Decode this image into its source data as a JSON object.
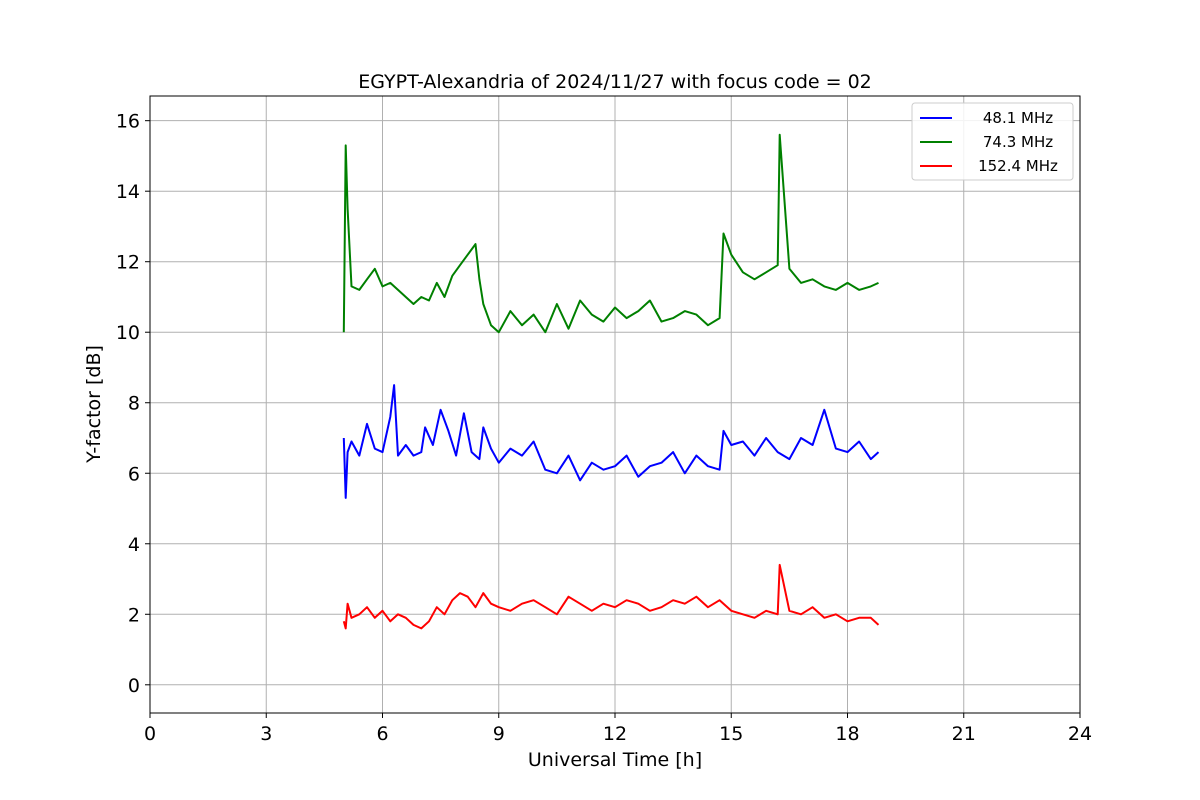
{
  "chart_data": {
    "type": "line",
    "title": "EGYPT-Alexandria of 2024/11/27 with focus code = 02",
    "xlabel": "Universal Time [h]",
    "ylabel": "Y-factor [dB]",
    "xlim": [
      0,
      24
    ],
    "ylim": [
      -0.8,
      16.7
    ],
    "xticks": [
      0,
      3,
      6,
      9,
      12,
      15,
      18,
      21,
      24
    ],
    "yticks": [
      0,
      2,
      4,
      6,
      8,
      10,
      12,
      14,
      16
    ],
    "grid": true,
    "legend_position": "top-right",
    "series": [
      {
        "name": "48.1 MHz",
        "color": "#0000ff",
        "x": [
          5.0,
          5.05,
          5.1,
          5.2,
          5.4,
          5.6,
          5.8,
          6.0,
          6.2,
          6.3,
          6.4,
          6.6,
          6.8,
          7.0,
          7.1,
          7.3,
          7.5,
          7.7,
          7.9,
          8.1,
          8.3,
          8.5,
          8.6,
          8.8,
          9.0,
          9.3,
          9.6,
          9.9,
          10.2,
          10.5,
          10.8,
          11.1,
          11.4,
          11.7,
          12.0,
          12.3,
          12.6,
          12.9,
          13.2,
          13.5,
          13.8,
          14.1,
          14.4,
          14.7,
          14.8,
          15.0,
          15.3,
          15.6,
          15.9,
          16.2,
          16.5,
          16.8,
          17.1,
          17.4,
          17.7,
          18.0,
          18.3,
          18.6,
          18.8
        ],
        "y": [
          7.0,
          5.3,
          6.6,
          6.9,
          6.5,
          7.4,
          6.7,
          6.6,
          7.6,
          8.5,
          6.5,
          6.8,
          6.5,
          6.6,
          7.3,
          6.8,
          7.8,
          7.2,
          6.5,
          7.7,
          6.6,
          6.4,
          7.3,
          6.7,
          6.3,
          6.7,
          6.5,
          6.9,
          6.1,
          6.0,
          6.5,
          5.8,
          6.3,
          6.1,
          6.2,
          6.5,
          5.9,
          6.2,
          6.3,
          6.6,
          6.0,
          6.5,
          6.2,
          6.1,
          7.2,
          6.8,
          6.9,
          6.5,
          7.0,
          6.6,
          6.4,
          7.0,
          6.8,
          7.8,
          6.7,
          6.6,
          6.9,
          6.4,
          6.6
        ]
      },
      {
        "name": "74.3 MHz",
        "color": "#008000",
        "x": [
          5.0,
          5.05,
          5.1,
          5.2,
          5.4,
          5.6,
          5.8,
          6.0,
          6.2,
          6.4,
          6.6,
          6.8,
          7.0,
          7.2,
          7.4,
          7.6,
          7.8,
          8.0,
          8.2,
          8.4,
          8.5,
          8.6,
          8.8,
          9.0,
          9.3,
          9.6,
          9.9,
          10.2,
          10.5,
          10.8,
          11.1,
          11.4,
          11.7,
          12.0,
          12.3,
          12.6,
          12.9,
          13.2,
          13.5,
          13.8,
          14.1,
          14.4,
          14.7,
          14.8,
          15.0,
          15.3,
          15.6,
          15.9,
          16.2,
          16.25,
          16.5,
          16.8,
          17.1,
          17.4,
          17.7,
          18.0,
          18.3,
          18.6,
          18.8
        ],
        "y": [
          10.0,
          15.3,
          13.5,
          11.3,
          11.2,
          11.5,
          11.8,
          11.3,
          11.4,
          11.2,
          11.0,
          10.8,
          11.0,
          10.9,
          11.4,
          11.0,
          11.6,
          11.9,
          12.2,
          12.5,
          11.5,
          10.8,
          10.2,
          10.0,
          10.6,
          10.2,
          10.5,
          10.0,
          10.8,
          10.1,
          10.9,
          10.5,
          10.3,
          10.7,
          10.4,
          10.6,
          10.9,
          10.3,
          10.4,
          10.6,
          10.5,
          10.2,
          10.4,
          12.8,
          12.2,
          11.7,
          11.5,
          11.7,
          11.9,
          15.6,
          11.8,
          11.4,
          11.5,
          11.3,
          11.2,
          11.4,
          11.2,
          11.3,
          11.4
        ]
      },
      {
        "name": "152.4 MHz",
        "color": "#ff0000",
        "x": [
          5.0,
          5.05,
          5.1,
          5.2,
          5.4,
          5.6,
          5.8,
          6.0,
          6.2,
          6.4,
          6.6,
          6.8,
          7.0,
          7.2,
          7.4,
          7.6,
          7.8,
          8.0,
          8.2,
          8.4,
          8.6,
          8.8,
          9.0,
          9.3,
          9.6,
          9.9,
          10.2,
          10.5,
          10.8,
          11.1,
          11.4,
          11.7,
          12.0,
          12.3,
          12.6,
          12.9,
          13.2,
          13.5,
          13.8,
          14.1,
          14.4,
          14.7,
          15.0,
          15.3,
          15.6,
          15.9,
          16.2,
          16.25,
          16.5,
          16.8,
          17.1,
          17.4,
          17.7,
          18.0,
          18.3,
          18.6,
          18.8
        ],
        "y": [
          1.8,
          1.6,
          2.3,
          1.9,
          2.0,
          2.2,
          1.9,
          2.1,
          1.8,
          2.0,
          1.9,
          1.7,
          1.6,
          1.8,
          2.2,
          2.0,
          2.4,
          2.6,
          2.5,
          2.2,
          2.6,
          2.3,
          2.2,
          2.1,
          2.3,
          2.4,
          2.2,
          2.0,
          2.5,
          2.3,
          2.1,
          2.3,
          2.2,
          2.4,
          2.3,
          2.1,
          2.2,
          2.4,
          2.3,
          2.5,
          2.2,
          2.4,
          2.1,
          2.0,
          1.9,
          2.1,
          2.0,
          3.4,
          2.1,
          2.0,
          2.2,
          1.9,
          2.0,
          1.8,
          1.9,
          1.9,
          1.7
        ]
      }
    ]
  }
}
